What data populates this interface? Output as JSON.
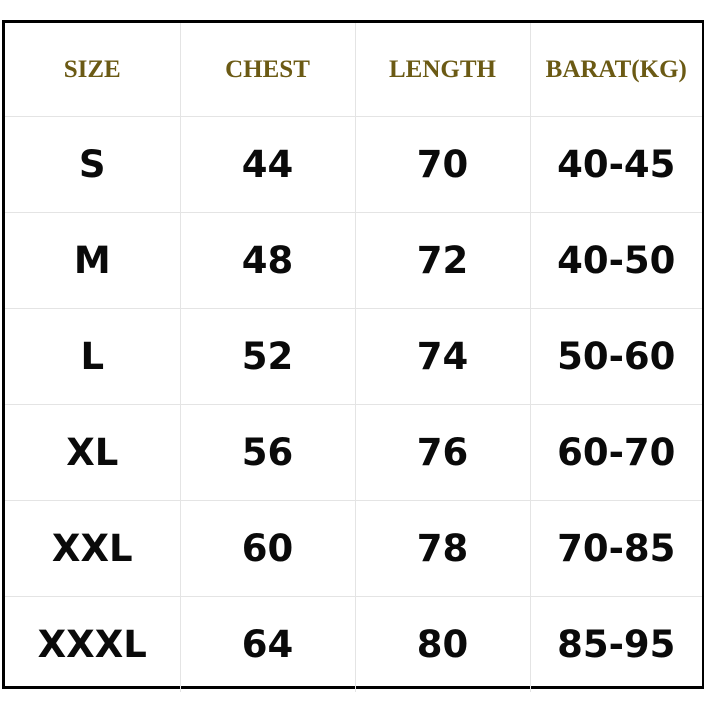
{
  "table": {
    "headers": [
      "SIZE",
      "CHEST",
      "LENGTH",
      "BARAT(KG)"
    ],
    "rows": [
      [
        "S",
        "44",
        "70",
        "40-45"
      ],
      [
        "M",
        "48",
        "72",
        "40-50"
      ],
      [
        "L",
        "52",
        "74",
        "50-60"
      ],
      [
        "XL",
        "56",
        "76",
        "60-70"
      ],
      [
        "XXL",
        "60",
        "78",
        "70-85"
      ],
      [
        "XXXL",
        "64",
        "80",
        "85-95"
      ]
    ]
  },
  "colors": {
    "header_text": "#6b5a14",
    "body_text": "#0a0a0a",
    "border": "#000000",
    "grid": "#e4e4e4"
  }
}
